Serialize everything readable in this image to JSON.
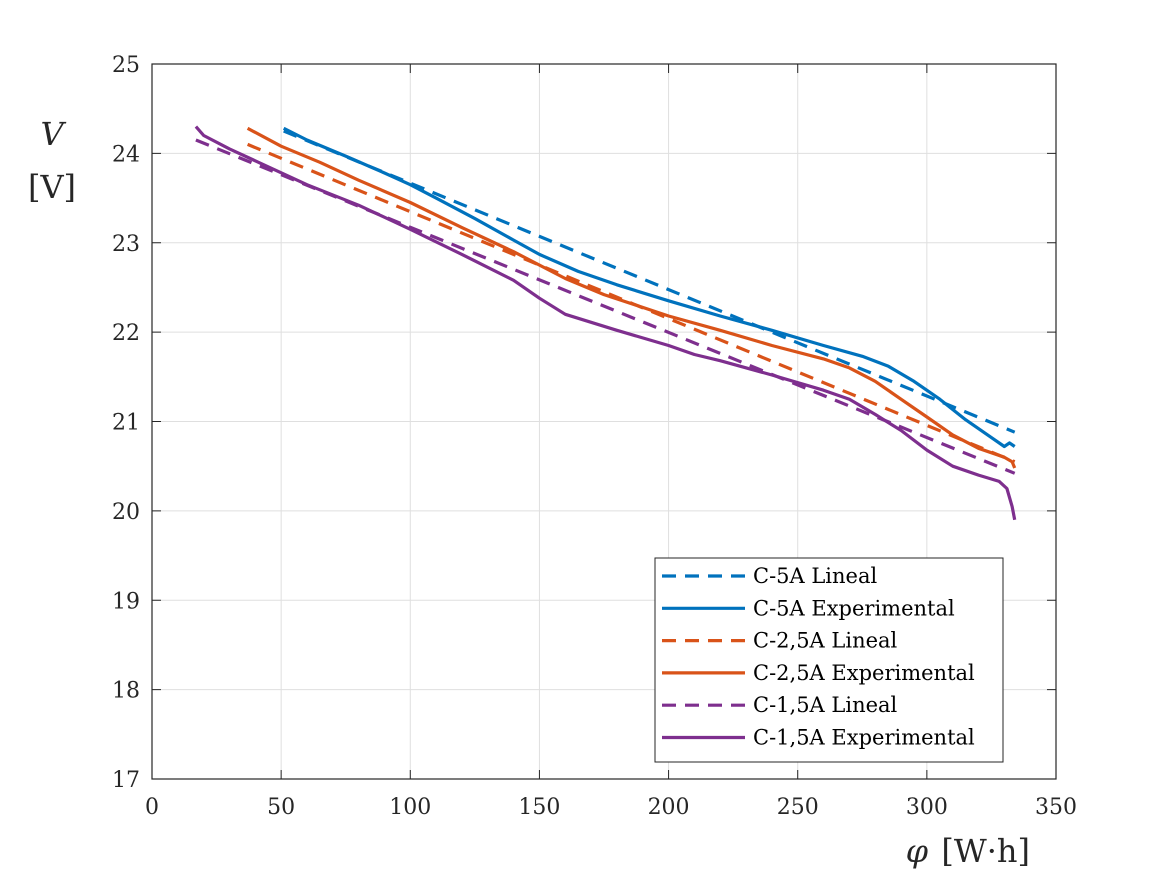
{
  "chart_data": {
    "type": "line",
    "title": "",
    "xlabel_symbol": "φ",
    "xlabel_unit": "[W·h]",
    "ylabel_symbol": "V",
    "ylabel_unit": "[V]",
    "xlim": [
      0,
      350
    ],
    "ylim": [
      17,
      25
    ],
    "xticks": [
      0,
      50,
      100,
      150,
      200,
      250,
      300,
      350
    ],
    "yticks": [
      17,
      18,
      19,
      20,
      21,
      22,
      23,
      24,
      25
    ],
    "grid": true,
    "legend_position": "bottom-right",
    "series": [
      {
        "name": "C-5A Lineal",
        "color": "#0072BD",
        "style": "dashed",
        "x": [
          51,
          334
        ],
        "y": [
          24.25,
          20.88
        ]
      },
      {
        "name": "C-5A Experimental",
        "color": "#0072BD",
        "style": "solid",
        "x": [
          51,
          60,
          75,
          90,
          100,
          110,
          125,
          140,
          150,
          165,
          180,
          200,
          220,
          240,
          260,
          275,
          285,
          295,
          305,
          315,
          325,
          330,
          332,
          334
        ],
        "y": [
          24.28,
          24.15,
          23.97,
          23.78,
          23.65,
          23.5,
          23.27,
          23.03,
          22.87,
          22.68,
          22.53,
          22.35,
          22.18,
          22.02,
          21.85,
          21.73,
          21.62,
          21.45,
          21.25,
          21.02,
          20.82,
          20.72,
          20.76,
          20.72
        ]
      },
      {
        "name": "C-2,5A Lineal",
        "color": "#D95319",
        "style": "dashed",
        "x": [
          37,
          334
        ],
        "y": [
          24.1,
          20.55
        ]
      },
      {
        "name": "C-2,5A Experimental",
        "color": "#D95319",
        "style": "solid",
        "x": [
          37,
          50,
          65,
          80,
          100,
          120,
          140,
          160,
          175,
          200,
          220,
          240,
          260,
          270,
          280,
          290,
          300,
          310,
          320,
          330,
          333,
          334
        ],
        "y": [
          24.28,
          24.08,
          23.9,
          23.7,
          23.45,
          23.17,
          22.9,
          22.6,
          22.42,
          22.18,
          22.02,
          21.85,
          21.7,
          21.6,
          21.45,
          21.25,
          21.05,
          20.85,
          20.7,
          20.6,
          20.55,
          20.48
        ]
      },
      {
        "name": "C-1,5A Lineal",
        "color": "#7E2F8E",
        "style": "dashed",
        "x": [
          17,
          334
        ],
        "y": [
          24.15,
          20.42
        ]
      },
      {
        "name": "C-1,5A Experimental",
        "color": "#7E2F8E",
        "style": "solid",
        "x": [
          17,
          20,
          30,
          45,
          60,
          80,
          100,
          120,
          140,
          150,
          160,
          180,
          200,
          210,
          220,
          240,
          260,
          270,
          280,
          290,
          300,
          310,
          320,
          328,
          331,
          333,
          334
        ],
        "y": [
          24.3,
          24.2,
          24.05,
          23.85,
          23.65,
          23.42,
          23.15,
          22.87,
          22.58,
          22.38,
          22.2,
          22.02,
          21.85,
          21.75,
          21.68,
          21.52,
          21.35,
          21.25,
          21.08,
          20.9,
          20.68,
          20.5,
          20.4,
          20.33,
          20.25,
          20.05,
          19.9
        ]
      }
    ]
  }
}
